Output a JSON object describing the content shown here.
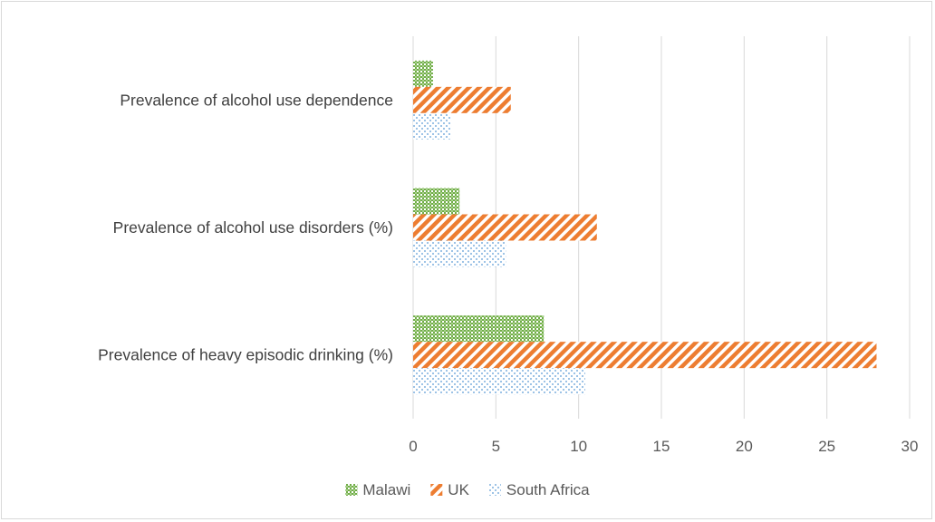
{
  "chart_data": {
    "type": "bar",
    "orientation": "horizontal",
    "title": "",
    "xlabel": "",
    "ylabel": "",
    "categories": [
      "Prevalence of alcohol use dependence",
      "Prevalence of alcohol use disorders (%)",
      "Prevalence of heavy episodic drinking (%)"
    ],
    "series": [
      {
        "name": "Malawi",
        "values": [
          1.2,
          2.8,
          7.9
        ],
        "color": "#70ad47",
        "pattern": "crosshatch-dots"
      },
      {
        "name": "UK",
        "values": [
          5.9,
          11.1,
          28.0
        ],
        "color": "#ed7d31",
        "pattern": "diagonal-stripes"
      },
      {
        "name": "South Africa",
        "values": [
          2.3,
          5.6,
          10.4
        ],
        "color": "#5b9bd5",
        "pattern": "sparse-dots"
      }
    ],
    "xlim": [
      0,
      30
    ],
    "xticks": [
      "0",
      "5",
      "10",
      "15",
      "20",
      "25",
      "30"
    ],
    "grid": "vertical",
    "legend": "bottom"
  }
}
